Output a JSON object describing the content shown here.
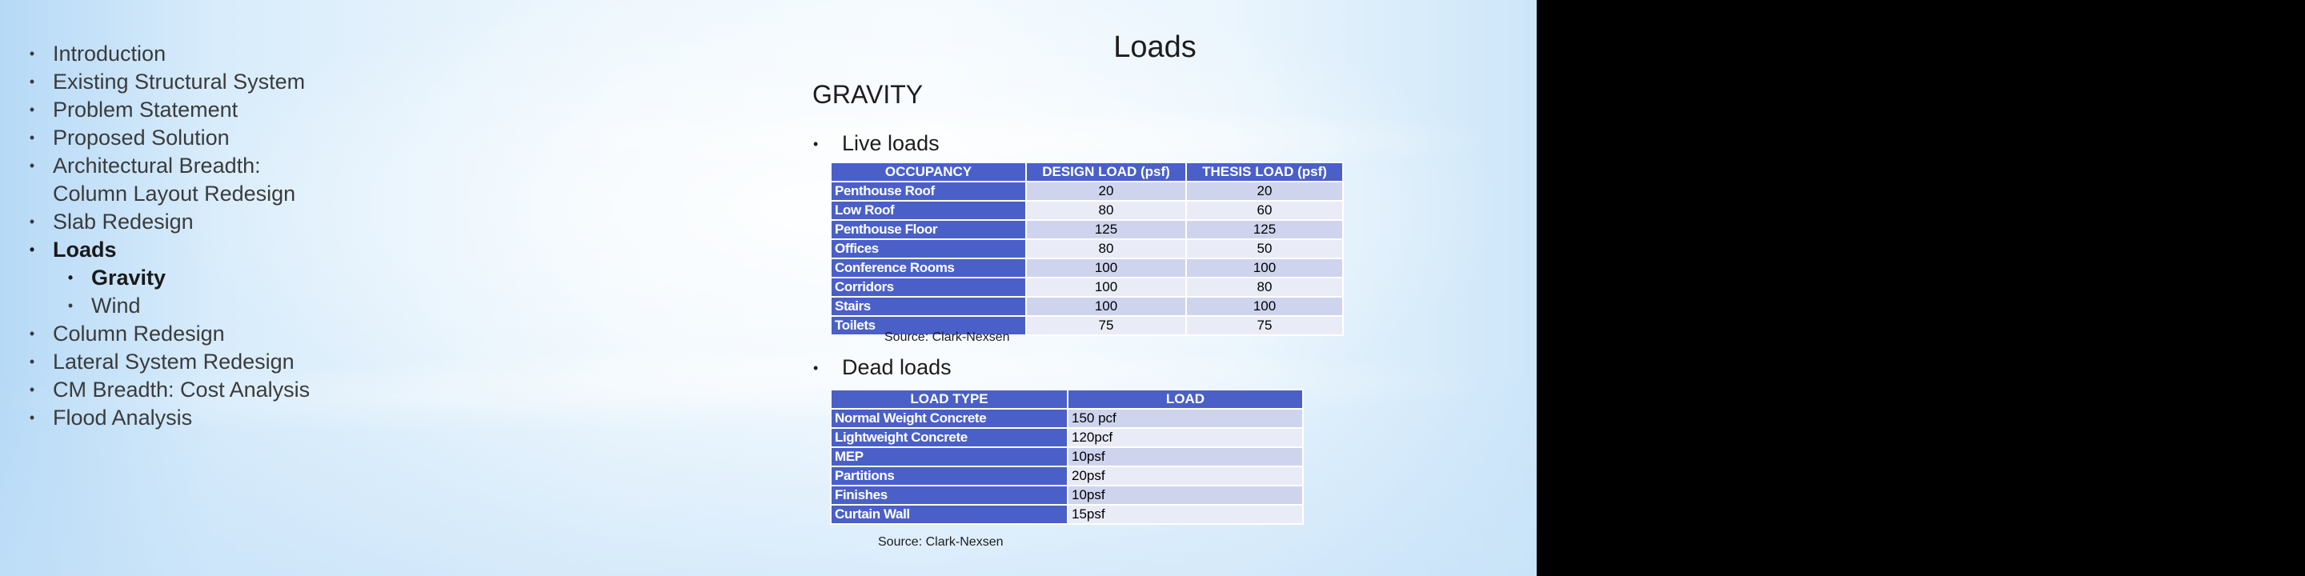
{
  "agenda": {
    "items": [
      {
        "label": "Introduction"
      },
      {
        "label": "Existing Structural System"
      },
      {
        "label": "Problem Statement"
      },
      {
        "label": "Proposed Solution"
      },
      {
        "label": "Architectural Breadth:",
        "continuation": "Column Layout Redesign"
      },
      {
        "label": "Slab Redesign"
      },
      {
        "label": "Loads"
      },
      {
        "label": "Gravity"
      },
      {
        "label": "Wind"
      },
      {
        "label": "Column Redesign"
      },
      {
        "label": "Lateral System Redesign"
      },
      {
        "label": "CM Breadth: Cost Analysis"
      },
      {
        "label": "Flood Analysis"
      }
    ]
  },
  "slide": {
    "title": "Loads",
    "section": "GRAVITY"
  },
  "live_loads": {
    "heading": "Live loads",
    "columns": [
      "OCCUPANCY",
      "DESIGN LOAD (psf)",
      "THESIS LOAD (psf)"
    ],
    "rows": [
      {
        "occupancy": "Penthouse Roof",
        "design": "20",
        "thesis": "20"
      },
      {
        "occupancy": "Low Roof",
        "design": "80",
        "thesis": "60"
      },
      {
        "occupancy": "Penthouse Floor",
        "design": "125",
        "thesis": "125"
      },
      {
        "occupancy": "Offices",
        "design": "80",
        "thesis": "50"
      },
      {
        "occupancy": "Conference Rooms",
        "design": "100",
        "thesis": "100"
      },
      {
        "occupancy": "Corridors",
        "design": "100",
        "thesis": "80"
      },
      {
        "occupancy": "Stairs",
        "design": "100",
        "thesis": "100"
      },
      {
        "occupancy": "Toilets",
        "design": "75",
        "thesis": "75"
      }
    ],
    "source": "Source: Clark-Nexsen"
  },
  "dead_loads": {
    "heading": "Dead loads",
    "columns": [
      "LOAD TYPE",
      "LOAD"
    ],
    "rows": [
      {
        "type": "Normal Weight Concrete",
        "load": "150 pcf"
      },
      {
        "type": "Lightweight Concrete",
        "load": "120pcf"
      },
      {
        "type": "MEP",
        "load": "10psf"
      },
      {
        "type": "Partitions",
        "load": "20psf"
      },
      {
        "type": "Finishes",
        "load": "10psf"
      },
      {
        "type": "Curtain Wall",
        "load": "15psf"
      }
    ],
    "source": "Source: Clark-Nexsen"
  },
  "colors": {
    "table_header": "#4a60c8",
    "row_odd": "#cfd4ee",
    "row_even": "#e9ebf6"
  }
}
